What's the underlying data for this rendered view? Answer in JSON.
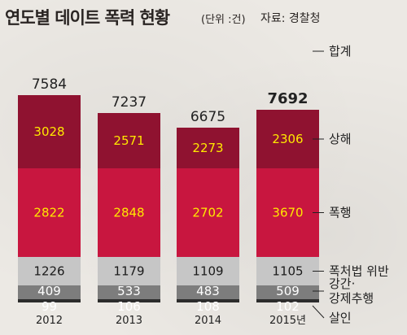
{
  "header": {
    "title": "연도별 데이트 폭력 현황",
    "unit": "(단위 :건)",
    "source": "자료: 경찰청"
  },
  "chart_data": {
    "type": "bar",
    "stacked": true,
    "title": "연도별 데이트 폭력 현황",
    "unit": "(단위 :건)",
    "categories": [
      "2012",
      "2013",
      "2014",
      "2015년"
    ],
    "totals": [
      7584,
      7237,
      6675,
      7692
    ],
    "total_label": "합계",
    "series": [
      {
        "name": "살인",
        "values": [
          99,
          106,
          108,
          102
        ],
        "color": "#2c2c2c",
        "text_color": "#ffffff"
      },
      {
        "name": "강간·강제추행",
        "values": [
          409,
          533,
          483,
          509
        ],
        "color": "#7d7d7d",
        "text_color": "#ffffff"
      },
      {
        "name": "폭처법 위반",
        "values": [
          1226,
          1179,
          1109,
          1105
        ],
        "color": "#c6c6c6",
        "text_color": "#1a1a1a"
      },
      {
        "name": "폭행",
        "values": [
          2822,
          2848,
          2702,
          3670
        ],
        "color": "#c8163f",
        "text_color": "#ffe800"
      },
      {
        "name": "상해",
        "values": [
          3028,
          2571,
          2273,
          2306
        ],
        "color": "#8f1230",
        "text_color": "#ffe800"
      }
    ]
  }
}
